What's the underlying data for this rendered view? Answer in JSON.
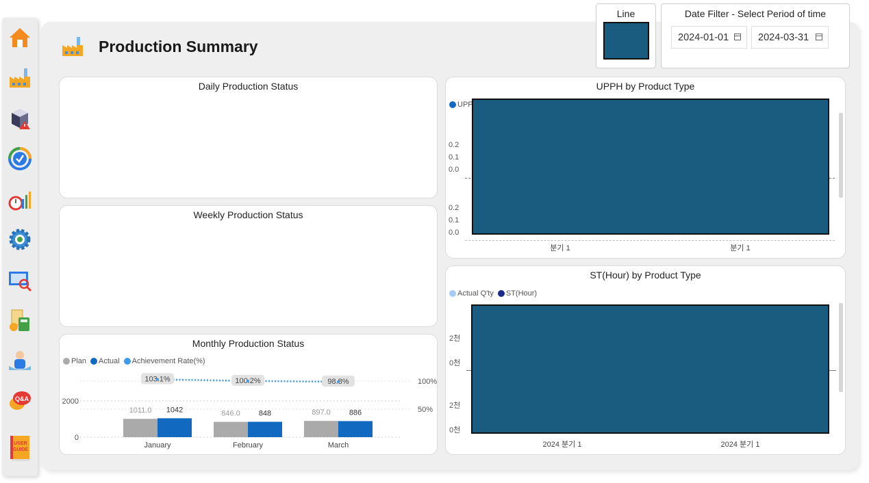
{
  "page": {
    "title": "Production Summary"
  },
  "sidebar": {
    "items": [
      {
        "name": "home",
        "icon": "home-icon"
      },
      {
        "name": "production",
        "icon": "factory-icon"
      },
      {
        "name": "defect",
        "icon": "defect-alert-icon"
      },
      {
        "name": "kpi",
        "icon": "kpi-gauge-icon"
      },
      {
        "name": "efficiency",
        "icon": "chart-clock-icon"
      },
      {
        "name": "settings",
        "icon": "gear-icon"
      },
      {
        "name": "analysis",
        "icon": "magnifier-chart-icon"
      },
      {
        "name": "cost",
        "icon": "calculator-icon"
      },
      {
        "name": "personnel",
        "icon": "worker-icon"
      },
      {
        "name": "qa",
        "icon": "qa-bubble-icon"
      },
      {
        "name": "user-guide",
        "icon": "user-guide-book-icon",
        "text": "USER GUIDE"
      }
    ]
  },
  "slicers": {
    "line": {
      "title": "Line",
      "color": "#1a5b80"
    },
    "date": {
      "title": "Date Filter - Select Period of time",
      "start": "2024-01-01",
      "end": "2024-03-31"
    }
  },
  "daily": {
    "title": "Daily Production Status"
  },
  "weekly": {
    "title": "Weekly Production Status"
  },
  "monthly": {
    "title": "Monthly Production Status",
    "legend": [
      "Plan",
      "Actual",
      "Achievement Rate(%)"
    ],
    "y_ticks": [
      "2000",
      "0"
    ],
    "y2_ticks": [
      "100%",
      "50%"
    ]
  },
  "upph": {
    "title": "UPPH by Product Type",
    "legend_partial": "UPP",
    "y_ticks_top": [
      "0.2",
      "0.1",
      "0.0"
    ],
    "y_ticks_bottom": [
      "0.2",
      "0.1",
      "0.0"
    ],
    "x_labels": [
      "분기 1",
      "분기 1"
    ]
  },
  "st": {
    "title": "ST(Hour) by Product Type",
    "legend": [
      "Actual Q'ty",
      "ST(Hour)"
    ],
    "y_ticks_top": [
      "2천",
      "0천"
    ],
    "y_ticks_bottom": [
      "2천",
      "0천"
    ],
    "x_labels": [
      "2024 분기 1",
      "2024 분기 1"
    ]
  },
  "colors": {
    "plan": "#aaaaaa",
    "actual": "#1169c0",
    "rate": "#3d9be9",
    "fill": "#1a5b80",
    "st_actual": "#a6cdf0",
    "st_hour": "#1a2a8c"
  },
  "chart_data": {
    "type": "bar",
    "title": "Monthly Production Status",
    "categories": [
      "January",
      "February",
      "March"
    ],
    "series": [
      {
        "name": "Plan",
        "values": [
          1011.0,
          846.0,
          897.0
        ],
        "labels": [
          "1011.0",
          "846.0",
          "897.0"
        ]
      },
      {
        "name": "Actual",
        "values": [
          1042,
          848,
          886
        ],
        "labels": [
          "1042",
          "848",
          "886"
        ]
      },
      {
        "name": "Achievement Rate(%)",
        "type": "line",
        "values": [
          103.1,
          100.2,
          98.8
        ],
        "labels": [
          "103.1%",
          "100.2%",
          "98.8%"
        ]
      }
    ],
    "ylim": [
      0,
      2000
    ],
    "y2lim": [
      0,
      100
    ],
    "legend": "top-left"
  }
}
